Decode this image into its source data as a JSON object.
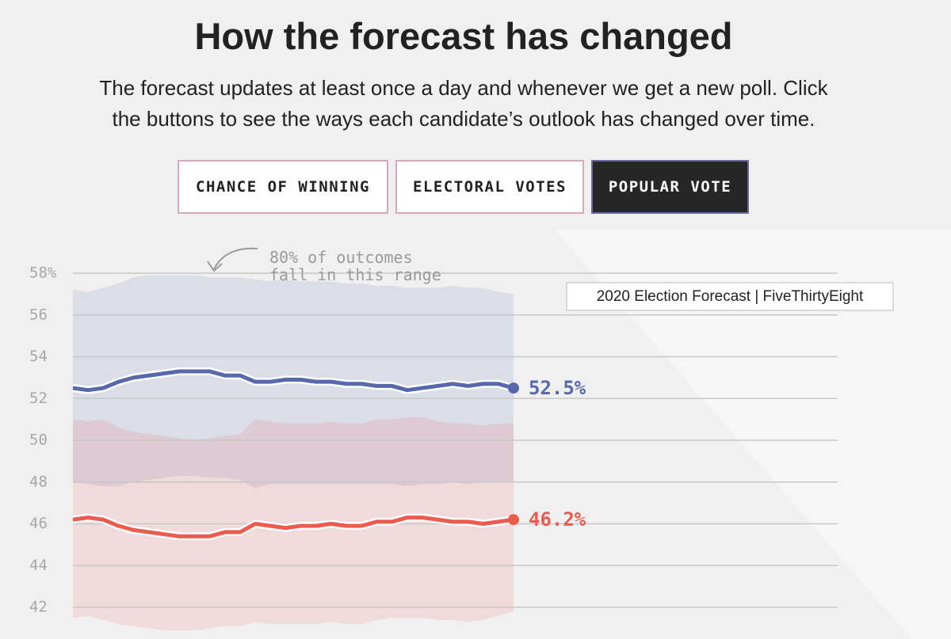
{
  "chart_data": {
    "type": "line",
    "title": "How the forecast has changed",
    "subtitle": [
      "The forecast updates at least once a day and whenever we get a new poll. Click",
      "the buttons to see the ways each candidate’s outlook has changed over time."
    ],
    "buttons": [
      {
        "label": "CHANCE OF WINNING",
        "active": false
      },
      {
        "label": "ELECTORAL VOTES",
        "active": false
      },
      {
        "label": "POPULAR VOTE",
        "active": true
      }
    ],
    "annotation": [
      "80% of outcomes",
      "fall in this range"
    ],
    "tooltip": "2020 Election Forecast | FiveThirtyEight",
    "ylim": [
      40.8,
      58
    ],
    "yticks": [
      {
        "value": 58,
        "label": "58%"
      },
      56,
      54,
      52,
      50,
      48,
      46,
      44,
      42
    ],
    "grid": true,
    "series": [
      {
        "color": "#5768ac",
        "band_color": "rgba(95,105,175,0.14)",
        "values": [
          52.5,
          52.4,
          52.5,
          52.8,
          53.0,
          53.1,
          53.2,
          53.3,
          53.3,
          53.3,
          53.1,
          53.1,
          52.8,
          52.8,
          52.9,
          52.9,
          52.8,
          52.8,
          52.7,
          52.7,
          52.6,
          52.6,
          52.4,
          52.5,
          52.6,
          52.7,
          52.6,
          52.7,
          52.7,
          52.5
        ],
        "value_labels": [
          null,
          null,
          null,
          null,
          null,
          null,
          null,
          null,
          null,
          null,
          null,
          null,
          null,
          null,
          null,
          null,
          null,
          null,
          null,
          null,
          null,
          null,
          null,
          null,
          null,
          null,
          null,
          null,
          null,
          "52.5%"
        ],
        "upper": [
          57.2,
          57.1,
          57.3,
          57.5,
          57.8,
          57.9,
          57.9,
          57.9,
          57.9,
          57.8,
          57.8,
          57.8,
          57.7,
          57.6,
          57.7,
          57.6,
          57.6,
          57.6,
          57.5,
          57.5,
          57.4,
          57.4,
          57.3,
          57.3,
          57.3,
          57.4,
          57.3,
          57.3,
          57.1,
          57.0
        ],
        "lower": [
          48.0,
          47.9,
          47.8,
          47.8,
          48.0,
          48.1,
          48.2,
          48.3,
          48.3,
          48.2,
          48.2,
          48.1,
          47.7,
          47.9,
          47.9,
          47.9,
          47.9,
          47.9,
          47.9,
          47.9,
          47.9,
          47.9,
          47.8,
          47.9,
          47.9,
          48.0,
          47.9,
          48.0,
          48.0,
          48.0
        ]
      },
      {
        "color": "#ed5b4e",
        "band_color": "rgba(240,95,95,0.15)",
        "values": [
          46.2,
          46.3,
          46.2,
          45.9,
          45.7,
          45.6,
          45.5,
          45.4,
          45.4,
          45.4,
          45.6,
          45.6,
          46.0,
          45.9,
          45.8,
          45.9,
          45.9,
          46.0,
          45.9,
          45.9,
          46.1,
          46.1,
          46.3,
          46.3,
          46.2,
          46.1,
          46.1,
          46.0,
          46.1,
          46.2
        ],
        "value_labels": [
          null,
          null,
          null,
          null,
          null,
          null,
          null,
          null,
          null,
          null,
          null,
          null,
          null,
          null,
          null,
          null,
          null,
          null,
          null,
          null,
          null,
          null,
          null,
          null,
          null,
          null,
          null,
          null,
          null,
          "46.2%"
        ],
        "upper": [
          51.0,
          50.9,
          51.0,
          50.6,
          50.4,
          50.3,
          50.2,
          50.1,
          50.0,
          50.1,
          50.2,
          50.3,
          51.0,
          50.9,
          50.8,
          50.8,
          50.8,
          50.9,
          50.8,
          50.8,
          51.0,
          51.0,
          51.1,
          51.1,
          50.9,
          50.8,
          50.8,
          50.7,
          50.8,
          50.8
        ],
        "lower": [
          41.5,
          41.6,
          41.4,
          41.2,
          41.1,
          41.0,
          40.9,
          40.9,
          40.9,
          41.0,
          41.1,
          41.1,
          41.3,
          41.2,
          41.2,
          41.2,
          41.2,
          41.3,
          41.2,
          41.2,
          41.4,
          41.5,
          41.5,
          41.5,
          41.4,
          41.4,
          41.3,
          41.4,
          41.6,
          41.8
        ]
      }
    ]
  }
}
